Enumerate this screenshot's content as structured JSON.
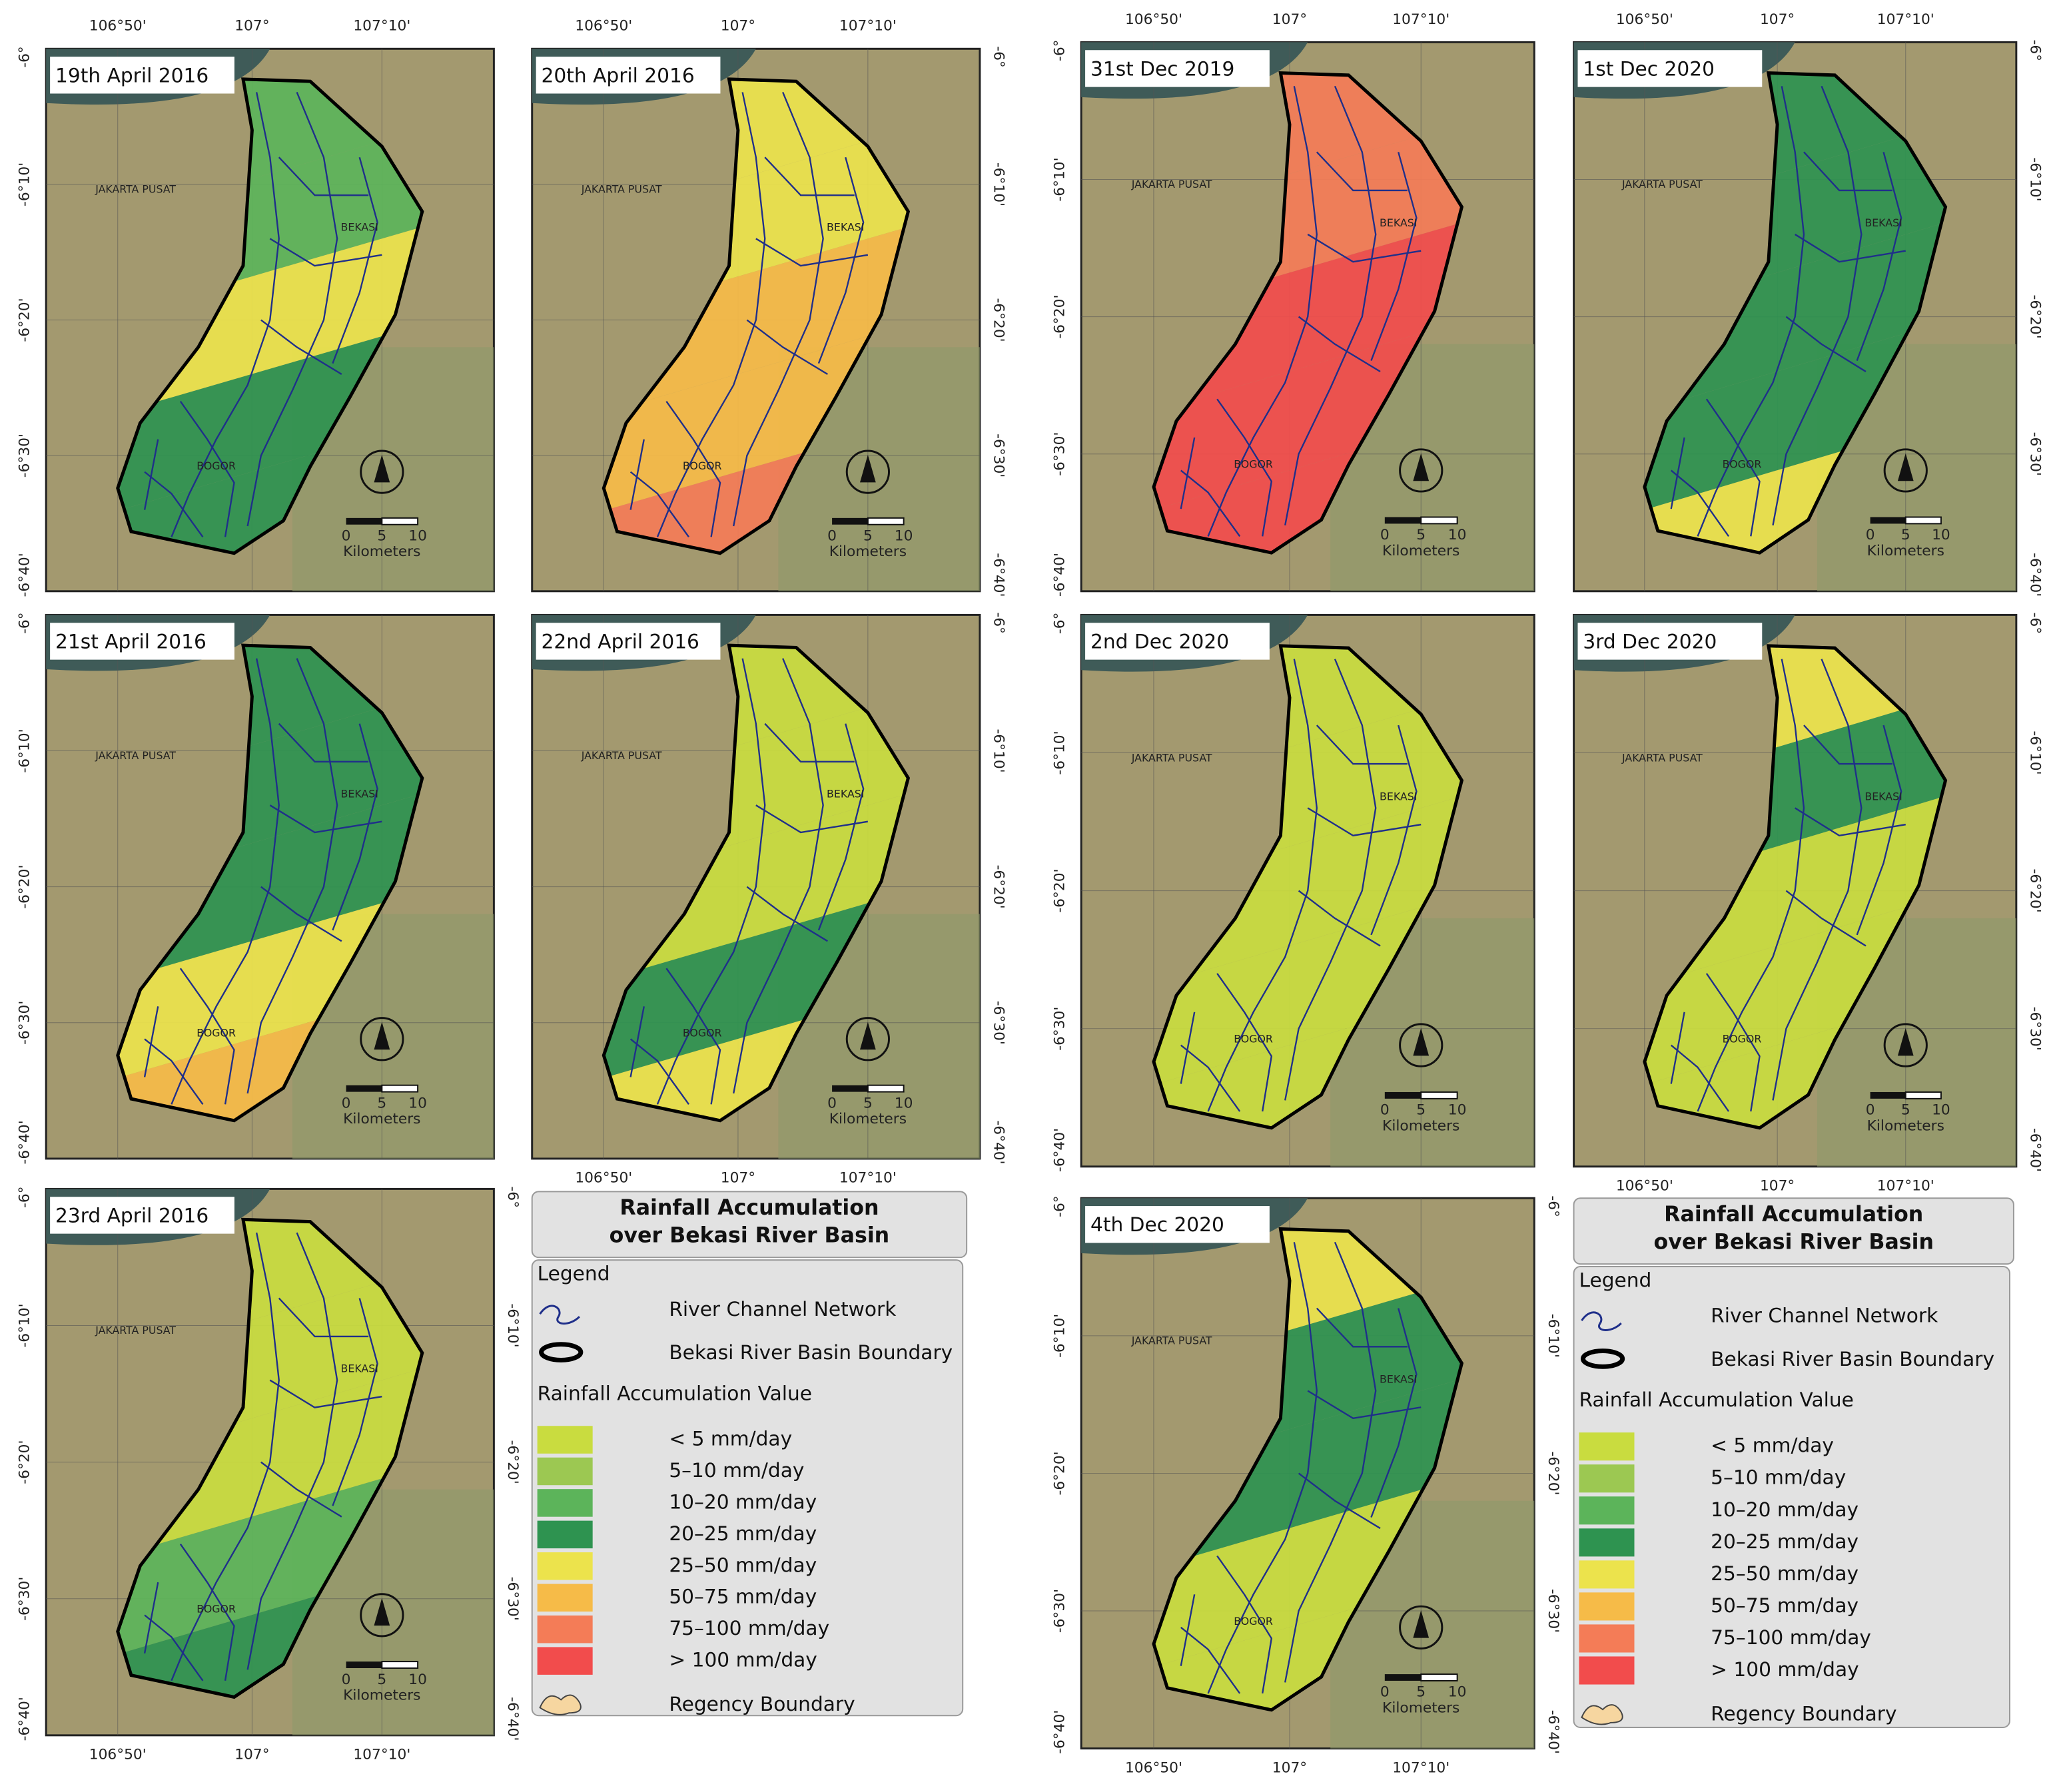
{
  "figure": {
    "lon_labels": [
      "106°50'",
      "107°",
      "107°10'"
    ],
    "lat_labels": [
      "-6°",
      "-6°10'",
      "-6°20'",
      "-6°30'",
      "-6°40'"
    ],
    "places": {
      "jakarta": "JAKARTA PUSAT",
      "bekasi": "BEKASI",
      "bogor": "BOGOR"
    },
    "scale": {
      "unit": "Kilometers",
      "ticks": [
        "0",
        "5",
        "10"
      ]
    },
    "classes": [
      {
        "label": "< 5 mm/day",
        "color": "#c9dc3f"
      },
      {
        "label": "5–10 mm/day",
        "color": "#9cc852"
      },
      {
        "label": "10–20 mm/day",
        "color": "#5cb45a"
      },
      {
        "label": "20–25 mm/day",
        "color": "#2e9350"
      },
      {
        "label": "25–50 mm/day",
        "color": "#ece34c"
      },
      {
        "label": "50–75 mm/day",
        "color": "#f6bb48"
      },
      {
        "label": "75–100 mm/day",
        "color": "#f47c57"
      },
      {
        "label": "> 100 mm/day",
        "color": "#f24c4c"
      }
    ],
    "panels": [
      {
        "date": "19th April 2016",
        "zones": [
          2,
          2,
          4,
          3,
          3
        ]
      },
      {
        "date": "20th April 2016",
        "zones": [
          4,
          4,
          5,
          5,
          6
        ]
      },
      {
        "date": "21st April 2016",
        "zones": [
          3,
          3,
          3,
          4,
          5
        ]
      },
      {
        "date": "22nd April 2016",
        "zones": [
          0,
          0,
          0,
          3,
          4
        ]
      },
      {
        "date": "23rd April 2016",
        "zones": [
          0,
          0,
          0,
          2,
          3
        ]
      },
      {
        "date": "31st Dec 2019",
        "zones": [
          6,
          6,
          7,
          7,
          7
        ]
      },
      {
        "date": "1st Dec 2020",
        "zones": [
          3,
          3,
          3,
          3,
          4
        ]
      },
      {
        "date": "2nd Dec 2020",
        "zones": [
          0,
          0,
          0,
          0,
          0
        ]
      },
      {
        "date": "3rd Dec 2020",
        "zones": [
          4,
          3,
          0,
          0,
          0
        ]
      },
      {
        "date": "4th Dec 2020",
        "zones": [
          4,
          3,
          3,
          0,
          0
        ]
      }
    ],
    "legend": {
      "title_lines": [
        "Rainfall Accumulation",
        "over Bekasi River Basin"
      ],
      "heading": "Legend",
      "river": "River Channel Network",
      "boundary": "Bekasi River Basin Boundary",
      "value_heading": "Rainfall Accumulation Value",
      "regency": "Regency Boundary"
    }
  }
}
